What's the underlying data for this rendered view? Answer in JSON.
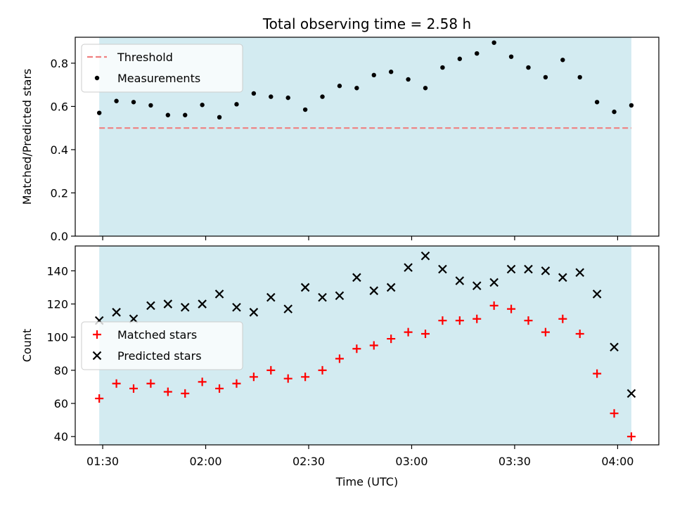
{
  "chart_data": {
    "type": "scatter",
    "title": "Total observing time = 2.58 h",
    "xlabel": "Time (UTC)",
    "x_tick_labels": [
      "01:30",
      "02:00",
      "02:30",
      "03:00",
      "03:30",
      "04:00"
    ],
    "x_tick_minutes": [
      90,
      120,
      150,
      180,
      210,
      240
    ],
    "x_range_minutes": [
      82,
      252
    ],
    "shaded_span_minutes": [
      89,
      244
    ],
    "shade_color": "#d3ebf1",
    "times_minutes": [
      89,
      94,
      99,
      104,
      109,
      114,
      119,
      124,
      129,
      134,
      139,
      144,
      149,
      154,
      159,
      164,
      169,
      174,
      179,
      184,
      189,
      194,
      199,
      204,
      209,
      214,
      219,
      224,
      229,
      234,
      239,
      244
    ],
    "panels": [
      {
        "id": "ratio",
        "ylabel": "Matched/Predicted stars",
        "ylim": [
          0,
          0.92
        ],
        "y_ticks": [
          0.0,
          0.2,
          0.4,
          0.6,
          0.8
        ],
        "y_tick_labels": [
          "0.0",
          "0.2",
          "0.4",
          "0.6",
          "0.8"
        ],
        "threshold": {
          "name": "Threshold",
          "value": 0.5,
          "color": "#f08080"
        },
        "legend": [
          "Threshold",
          "Measurements"
        ],
        "series": [
          {
            "name": "Measurements",
            "marker": "dot",
            "color": "#000000",
            "values": [
              0.57,
              0.625,
              0.62,
              0.605,
              0.56,
              0.56,
              0.607,
              0.55,
              0.61,
              0.66,
              0.645,
              0.64,
              0.585,
              0.645,
              0.695,
              0.685,
              0.745,
              0.76,
              0.725,
              0.685,
              0.78,
              0.82,
              0.845,
              0.895,
              0.83,
              0.78,
              0.735,
              0.815,
              0.735,
              0.62,
              0.575,
              0.605
            ]
          }
        ]
      },
      {
        "id": "count",
        "ylabel": "Count",
        "ylim": [
          35,
          155
        ],
        "y_ticks": [
          40,
          60,
          80,
          100,
          120,
          140
        ],
        "y_tick_labels": [
          "40",
          "60",
          "80",
          "100",
          "120",
          "140"
        ],
        "legend": [
          "Matched stars",
          "Predicted stars"
        ],
        "series": [
          {
            "name": "Matched stars",
            "marker": "plus",
            "color": "#ff0000",
            "values": [
              63,
              72,
              69,
              72,
              67,
              66,
              73,
              69,
              72,
              76,
              80,
              75,
              76,
              80,
              87,
              93,
              95,
              99,
              103,
              102,
              110,
              110,
              111,
              119,
              117,
              110,
              103,
              111,
              102,
              78,
              54,
              40
            ]
          },
          {
            "name": "Predicted stars",
            "marker": "x",
            "color": "#000000",
            "values": [
              110,
              115,
              111,
              119,
              120,
              118,
              120,
              126,
              118,
              115,
              124,
              117,
              130,
              124,
              125,
              136,
              128,
              130,
              142,
              149,
              141,
              134,
              131,
              133,
              141,
              141,
              140,
              136,
              139,
              126,
              94,
              66
            ]
          }
        ]
      }
    ]
  }
}
